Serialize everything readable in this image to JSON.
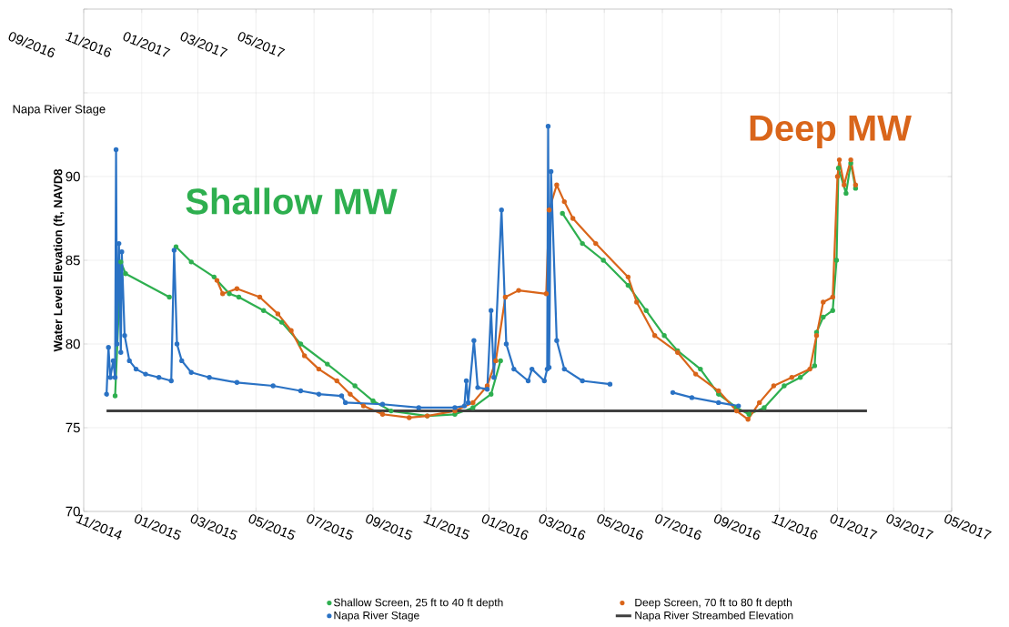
{
  "chart_data": {
    "type": "line",
    "ylabel": "Water Level Elevation  (ft, NAVD8",
    "xlim": [
      "2014-11-01",
      "2017-05-01"
    ],
    "xticks": [
      {
        "value": "2014-11-01",
        "label": "11/2014"
      },
      {
        "value": "2015-01-01",
        "label": "01/2015"
      },
      {
        "value": "2015-03-01",
        "label": "03/2015"
      },
      {
        "value": "2015-05-01",
        "label": "05/2015"
      },
      {
        "value": "2015-07-01",
        "label": "07/2015"
      },
      {
        "value": "2015-09-01",
        "label": "09/2015"
      },
      {
        "value": "2015-11-01",
        "label": "11/2015"
      },
      {
        "value": "2016-01-01",
        "label": "01/2016"
      },
      {
        "value": "2016-03-01",
        "label": "03/2016"
      },
      {
        "value": "2016-05-01",
        "label": "05/2016"
      },
      {
        "value": "2016-07-01",
        "label": "07/2016"
      },
      {
        "value": "2016-09-01",
        "label": "09/2016"
      },
      {
        "value": "2016-11-01",
        "label": "11/2016"
      },
      {
        "value": "2017-01-01",
        "label": "01/2017"
      },
      {
        "value": "2017-03-01",
        "label": "03/2017"
      },
      {
        "value": "2017-05-01",
        "label": "05/2017"
      }
    ],
    "ylim": [
      70,
      100
    ],
    "yticks": [
      70,
      75,
      80,
      85,
      90,
      {
        "value": 95,
        "label": null
      },
      {
        "value": 100,
        "label": null
      }
    ],
    "grid": true,
    "legend": "bottom",
    "series": [
      {
        "name": "Shallow Screen, 25 ft to 40 ft depth",
        "color": "#2eaf4f",
        "marker": "circle",
        "x": [
          "2014-12-04",
          "2014-12-10",
          "2014-12-15",
          "2015-01-30",
          "2015-02-03",
          "2015-02-06",
          "2015-02-22",
          "2015-03-18",
          "2015-04-03",
          "2015-04-13",
          "2015-05-09",
          "2015-05-28",
          "2015-06-17",
          "2015-07-15",
          "2015-08-13",
          "2015-09-01",
          "2015-09-20",
          "2015-10-28",
          "2015-11-26",
          "2015-12-15",
          "2016-01-03",
          "2016-01-13",
          "2016-02-01",
          "2016-03-18",
          "2016-04-08",
          "2016-04-30",
          "2016-05-26",
          "2016-06-14",
          "2016-07-03",
          "2016-07-17",
          "2016-08-10",
          "2016-08-29",
          "2016-09-17",
          "2016-09-30",
          "2016-10-16",
          "2016-11-06",
          "2016-11-23",
          "2016-12-08",
          "2016-12-10",
          "2016-12-17",
          "2016-12-27",
          "2016-12-31",
          "2017-01-02",
          "2017-01-10",
          "2017-01-15",
          "2017-01-20"
        ],
        "values": [
          76.9,
          84.9,
          84.2,
          82.8,
          null,
          85.8,
          84.9,
          84.0,
          83.0,
          82.8,
          82.0,
          81.3,
          80.0,
          78.8,
          77.5,
          76.6,
          76.0,
          75.7,
          75.8,
          76.2,
          77.0,
          79.0,
          null,
          87.8,
          86.0,
          85.0,
          83.5,
          82.0,
          80.5,
          79.6,
          78.5,
          77.0,
          76.2,
          75.8,
          76.2,
          77.5,
          78.0,
          78.7,
          80.7,
          81.6,
          82.0,
          85.0,
          90.5,
          89.0,
          90.8,
          89.3
        ]
      },
      {
        "name": "Deep Screen, 70 ft to 80 ft depth",
        "color": "#d9651a",
        "marker": "circle",
        "x": [
          "2015-03-21",
          "2015-03-27",
          "2015-04-11",
          "2015-05-05",
          "2015-05-24",
          "2015-06-07",
          "2015-06-21",
          "2015-07-06",
          "2015-07-25",
          "2015-08-08",
          "2015-08-22",
          "2015-09-11",
          "2015-10-09",
          "2015-10-28",
          "2015-11-26",
          "2015-12-15",
          "2015-12-30",
          "2016-01-08",
          "2016-01-18",
          "2016-02-01",
          "2016-03-01",
          "2016-03-04",
          "2016-03-12",
          "2016-03-20",
          "2016-03-29",
          "2016-04-22",
          "2016-05-26",
          "2016-06-04",
          "2016-06-23",
          "2016-07-17",
          "2016-08-05",
          "2016-08-29",
          "2016-09-17",
          "2016-09-29",
          "2016-10-11",
          "2016-10-26",
          "2016-11-14",
          "2016-12-03",
          "2016-12-10",
          "2016-12-17",
          "2016-12-27",
          "2017-01-01",
          "2017-01-03",
          "2017-01-08",
          "2017-01-15",
          "2017-01-20"
        ],
        "values": [
          83.8,
          83.0,
          83.3,
          82.8,
          81.8,
          80.8,
          79.3,
          78.5,
          77.8,
          77.0,
          76.3,
          75.8,
          75.6,
          75.7,
          76.0,
          76.5,
          77.5,
          79.0,
          82.8,
          83.2,
          83.0,
          88.0,
          89.5,
          88.5,
          87.5,
          86.0,
          84.0,
          82.5,
          80.5,
          79.5,
          78.2,
          77.2,
          76.0,
          75.5,
          76.5,
          77.5,
          78.0,
          78.5,
          80.5,
          82.5,
          82.8,
          90.0,
          91.0,
          89.5,
          91.0,
          89.5
        ]
      },
      {
        "name": "Napa River Stage",
        "color": "#2a72c4",
        "marker": "circle",
        "x": [
          "2014-11-25",
          "2014-11-27",
          "2014-11-29",
          "2014-12-02",
          "2014-12-04",
          "2014-12-05",
          "2014-12-06",
          "2014-12-08",
          "2014-12-10",
          "2014-12-11",
          "2014-12-14",
          "2014-12-19",
          "2014-12-26",
          "2015-01-05",
          "2015-01-19",
          "2015-02-01",
          "2015-02-04",
          "2015-02-07",
          "2015-02-12",
          "2015-02-22",
          "2015-03-13",
          "2015-04-11",
          "2015-05-19",
          "2015-06-17",
          "2015-07-06",
          "2015-07-30",
          "2015-08-03",
          "2015-09-11",
          "2015-10-19",
          "2015-11-26",
          "2015-12-06",
          "2015-12-08",
          "2015-12-10",
          "2015-12-16",
          "2015-12-20",
          "2015-12-30",
          "2016-01-03",
          "2016-01-06",
          "2016-01-14",
          "2016-01-19",
          "2016-01-27",
          "2016-02-11",
          "2016-02-15",
          "2016-02-28",
          "2016-03-02",
          "2016-03-03",
          "2016-03-04",
          "2016-03-06",
          "2016-03-12",
          "2016-03-20",
          "2016-04-08",
          "2016-05-07",
          "2016-06-10",
          "2016-07-12",
          "2016-08-01",
          "2016-08-29",
          "2016-09-19"
        ],
        "values": [
          77.0,
          79.8,
          78.0,
          79.0,
          78.0,
          91.6,
          80.0,
          86.0,
          79.5,
          85.5,
          80.5,
          79.0,
          78.5,
          78.2,
          78.0,
          77.8,
          85.6,
          80.0,
          79.0,
          78.3,
          78.0,
          77.7,
          77.5,
          77.2,
          77.0,
          76.9,
          76.5,
          76.4,
          76.2,
          76.2,
          76.3,
          77.8,
          76.5,
          80.2,
          77.4,
          77.3,
          82.0,
          78.0,
          88.0,
          80.0,
          78.5,
          77.8,
          78.5,
          77.8,
          78.5,
          93.0,
          78.6,
          90.3,
          80.2,
          78.5,
          77.8,
          77.6,
          null,
          77.1,
          76.8,
          76.5,
          76.3
        ]
      },
      {
        "name": "Napa River Streambed Elevation",
        "color": "#404040",
        "marker": "none",
        "x": [
          "2014-11-25",
          "2017-02-01"
        ],
        "values": [
          76,
          76
        ]
      }
    ],
    "annotations": [
      "Shallow MW",
      "Deep MW",
      "09/2016",
      "11/2016",
      "01/2017",
      "03/2017",
      "05/2017",
      "Napa River Stage"
    ]
  }
}
